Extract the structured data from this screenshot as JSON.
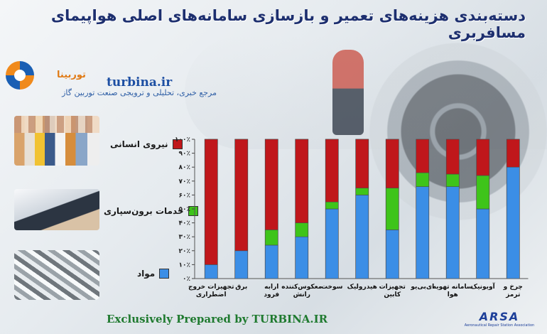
{
  "header": {
    "title": "دسته‌بندی هزینه‌های تعمیر و بازسازی سامانه‌های اصلی هواپیمای مسافربری"
  },
  "brand": {
    "url": "turbina.ir",
    "name": "توربینا",
    "subtitle": "مرجع خبری، تحلیلی و ترویجی صنعت توربین گاز"
  },
  "footer": {
    "credit": "Exclusively Prepared by TURBINA.IR",
    "org_logo": "ARSA",
    "org_name": "Aeronautical Repair Station Association"
  },
  "colors": {
    "labor": "#c0171b",
    "outsourcing": "#3ec41a",
    "materials": "#3b8ee6",
    "title": "#1d2f6f"
  },
  "chart_data": {
    "type": "bar",
    "stacked": true,
    "categories": [
      "تجهیزات خروج اضطراری",
      "برق",
      "ارابه فرود",
      "معکوس‌کننده رانش",
      "سوخت",
      "هیدرولیک",
      "تجهیزات کابین",
      "ای‌بی‌یو",
      "سامانه تهویه هوا",
      "آویونیک",
      "چرخ و ترمز"
    ],
    "series": [
      {
        "name": "مواد",
        "color": "#3b8ee6",
        "values": [
          10,
          20,
          24,
          30,
          50,
          60,
          35,
          66,
          66,
          50,
          80
        ]
      },
      {
        "name": "خدمات برون‌سپاری",
        "color": "#3ec41a",
        "values": [
          0,
          0,
          11,
          10,
          5,
          5,
          30,
          10,
          9,
          24,
          0
        ]
      },
      {
        "name": "نیروی انسانی",
        "color": "#c0171b",
        "values": [
          90,
          80,
          65,
          60,
          45,
          35,
          35,
          24,
          25,
          26,
          20
        ]
      }
    ],
    "y_ticks": [
      "۰٪",
      "۱۰٪",
      "۲۰٪",
      "۳۰٪",
      "۴۰٪",
      "۵۰٪",
      "۶۰٪",
      "۷۰٪",
      "۸۰٪",
      "۹۰٪",
      "۱۰۰٪"
    ],
    "ylim": [
      0,
      100
    ],
    "legend_position": "left"
  }
}
